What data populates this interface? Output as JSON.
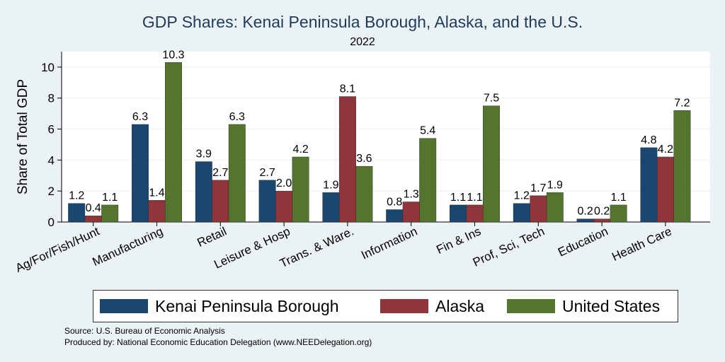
{
  "chart_data": {
    "type": "bar",
    "title": "GDP Shares: Kenai Peninsula Borough, Alaska, and the U.S.",
    "subtitle": "2022",
    "ylabel": "Share of Total GDP",
    "xlabel": "",
    "ylim": [
      0,
      11
    ],
    "yticks": [
      0,
      2,
      4,
      6,
      8,
      10
    ],
    "grid": true,
    "categories": [
      "Ag/For/Fish/Hunt",
      "Manufacturing",
      "Retail",
      "Leisure & Hosp",
      "Trans. & Ware.",
      "Information",
      "Fin & Ins",
      "Prof, Sci, Tech",
      "Education",
      "Health Care"
    ],
    "series": [
      {
        "name": "Kenai Peninsula Borough",
        "color": "#1a476f",
        "values": [
          1.2,
          6.3,
          3.9,
          2.7,
          1.9,
          0.8,
          1.1,
          1.2,
          0.2,
          4.8
        ]
      },
      {
        "name": "Alaska",
        "color": "#90353b",
        "values": [
          0.4,
          1.4,
          2.7,
          2.0,
          8.1,
          1.3,
          1.1,
          1.7,
          0.2,
          4.2
        ]
      },
      {
        "name": "United States",
        "color": "#55752f",
        "values": [
          1.1,
          10.3,
          6.3,
          4.2,
          3.6,
          5.4,
          7.5,
          1.9,
          1.1,
          7.2
        ]
      }
    ],
    "legend_position": "bottom"
  },
  "source_lines": [
    "Source: U.S. Bureau of Economic Analysis",
    "Produced by: National Economic Education Delegation (www.NEEDelegation.org)"
  ]
}
